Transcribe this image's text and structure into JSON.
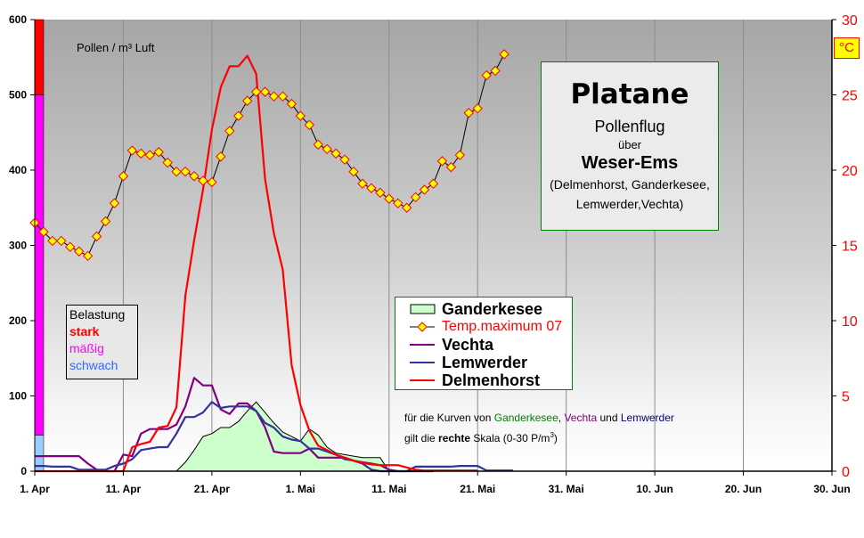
{
  "chart_data": {
    "type": "line",
    "x_start": "1. Apr",
    "x_tick_labels": [
      "1. Apr",
      "11. Apr",
      "21. Apr",
      "1. Mai",
      "11. Mai",
      "21. Mai",
      "31. Mai",
      "10. Jun",
      "20. Jun",
      "30. Jun"
    ],
    "left_axis": {
      "label": "Pollen / m³  Luft",
      "ylim": [
        0,
        600
      ],
      "ticks": [
        0,
        100,
        200,
        300,
        400,
        500,
        600
      ]
    },
    "right_axis": {
      "ylim": [
        0,
        30
      ],
      "ticks": [
        0,
        5,
        10,
        15,
        20,
        25,
        30
      ],
      "unit_label": "°C",
      "color": "#ff0000"
    },
    "grid": {
      "vertical": true,
      "horizontal": false
    },
    "severity_bands": [
      {
        "label": "schwach",
        "from": 0,
        "to": 48,
        "color": "#99ccff"
      },
      {
        "label": "mäßig",
        "from": 48,
        "to": 500,
        "color": "#ff00ff"
      },
      {
        "label": "stark",
        "from": 500,
        "to": 600,
        "color": "#ff0000"
      }
    ],
    "series": [
      {
        "name": "Ganderkesee",
        "kind": "area",
        "axis": "right",
        "color": "#ccffcc",
        "start_day": 16,
        "values": [
          0,
          0.6,
          1.4,
          2.3,
          2.5,
          2.9,
          2.9,
          3.3,
          4.0,
          4.6,
          3.9,
          3.2,
          2.6,
          2.3,
          2.0,
          2.8,
          2.4,
          1.6,
          1.2,
          1.1,
          1.0,
          0.9,
          0.9,
          0.9,
          0
        ]
      },
      {
        "name": "Temp.maximum 07",
        "kind": "line-marker",
        "axis": "right",
        "color": "#000000",
        "marker_color": "#ffff00",
        "marker_edge": "#ff0000",
        "start_day": 0,
        "values": [
          16.5,
          15.9,
          15.3,
          15.3,
          14.9,
          14.6,
          14.3,
          15.6,
          16.6,
          17.8,
          19.6,
          21.3,
          21.1,
          21.0,
          21.2,
          20.5,
          19.9,
          19.9,
          19.6,
          19.3,
          19.2,
          20.9,
          22.6,
          23.6,
          24.6,
          25.2,
          25.2,
          24.9,
          24.9,
          24.4,
          23.6,
          23.0,
          21.7,
          21.4,
          21.1,
          20.7,
          19.9,
          19.1,
          18.8,
          18.5,
          18.1,
          17.8,
          17.5,
          18.2,
          18.7,
          19.1,
          20.6,
          20.2,
          21.0,
          23.8,
          24.1,
          26.3,
          26.6,
          27.7
        ]
      },
      {
        "name": "Vechta",
        "kind": "line",
        "axis": "right",
        "color": "#800080",
        "start_day": 0,
        "values": [
          1.0,
          1.0,
          1.0,
          1.0,
          1.0,
          1.0,
          0.5,
          0.1,
          0,
          0,
          1.1,
          1.0,
          2.5,
          2.8,
          2.8,
          2.8,
          3.1,
          4.3,
          6.2,
          5.7,
          5.7,
          4.1,
          3.8,
          4.5,
          4.5,
          4.0,
          2.9,
          1.3,
          1.2,
          1.2,
          1.2,
          1.5,
          0.9,
          0.9,
          0.9,
          0.9,
          0.7,
          0.6,
          0.5,
          0.4,
          0.1,
          0,
          0,
          0,
          0,
          0
        ]
      },
      {
        "name": "Lemwerder",
        "kind": "line",
        "axis": "right",
        "color": "#333399",
        "start_day": 0,
        "values": [
          0.35,
          0.35,
          0.3,
          0.3,
          0.3,
          0.1,
          0.1,
          0.1,
          0.1,
          0.35,
          0.5,
          0.8,
          1.4,
          1.5,
          1.6,
          1.6,
          2.5,
          3.6,
          3.6,
          3.9,
          4.6,
          4.2,
          4.3,
          4.3,
          4.3,
          4.0,
          3.2,
          2.9,
          2.3,
          2.1,
          2.0,
          1.5,
          1.5,
          1.3,
          1.1,
          0.8,
          0.7,
          0.5,
          0.1,
          0,
          0,
          0,
          0,
          0.3,
          0.3,
          0.3,
          0.3,
          0.3,
          0.35,
          0.35,
          0.35,
          0.05,
          0.05,
          0.05,
          0.05
        ]
      },
      {
        "name": "Delmenhorst",
        "kind": "line",
        "axis": "left",
        "color": "#ff0000",
        "start_day": 0,
        "values": [
          0,
          0,
          0,
          0,
          0,
          0,
          0,
          0,
          0,
          0,
          0,
          32,
          36,
          39,
          58,
          60,
          85,
          233,
          307,
          374,
          454,
          510,
          538,
          538,
          552,
          528,
          388,
          316,
          268,
          141,
          88,
          54,
          34,
          28,
          22,
          18,
          14,
          11,
          9,
          8,
          8,
          8,
          5,
          2,
          1,
          1,
          1,
          1,
          1,
          1,
          1
        ]
      }
    ]
  },
  "title_box": {
    "title": "Platane",
    "line2": "Pollenflug",
    "line3": "über",
    "line4": "Weser-Ems",
    "line5": "(Delmenhorst, Ganderkesee,",
    "line6": "Lemwerder,Vechta)"
  },
  "belastung": {
    "heading": "Belastung",
    "stark": "stark",
    "maessig": "mäßig",
    "schwach": "schwach"
  },
  "note": {
    "p1": "für die Kurven von ",
    "g": "Ganderkesee",
    "c1": ", ",
    "v": "Vechta",
    "c2": " und ",
    "l": "Lemwerder",
    "p2": "gilt die ",
    "bold": "rechte",
    "p3": " Skala (0-30 P/m",
    "sup": "3",
    "p4": ")"
  }
}
